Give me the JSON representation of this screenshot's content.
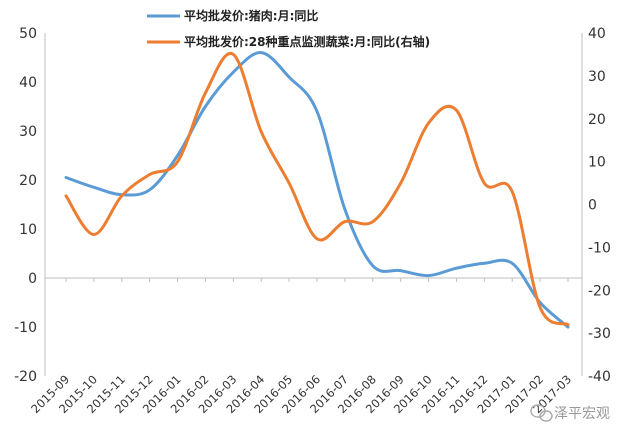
{
  "chart_data": {
    "type": "line",
    "categories": [
      "2015-09",
      "2015-10",
      "2015-11",
      "2015-12",
      "2016-01",
      "2016-02",
      "2016-03",
      "2016-04",
      "2016-05",
      "2016-06",
      "2016-07",
      "2016-08",
      "2016-09",
      "2016-10",
      "2016-11",
      "2016-12",
      "2017-01",
      "2017-02",
      "2017-03"
    ],
    "series": [
      {
        "name": "平均批发价:猪肉:月:同比",
        "axis": "left",
        "color": "#5B9BD5",
        "values": [
          20.5,
          18.5,
          17,
          18,
          25,
          35,
          42,
          46,
          41,
          34,
          14,
          2.5,
          1.5,
          0.5,
          2,
          3,
          3,
          -5,
          -10
        ]
      },
      {
        "name": "平均批发价:28种重点监测蔬菜:月:同比(右轴)",
        "axis": "right",
        "color": "#ED7D31",
        "values": [
          2,
          -7,
          2,
          7,
          10,
          26,
          35,
          17,
          5,
          -8,
          -4,
          -4,
          5,
          19,
          22,
          5,
          3,
          -24,
          -28
        ]
      }
    ],
    "y_left": {
      "min": -20,
      "max": 50,
      "ticks": [
        50,
        40,
        30,
        20,
        10,
        0,
        -10,
        -20
      ]
    },
    "y_right": {
      "min": -40,
      "max": 40,
      "ticks": [
        40,
        30,
        20,
        10,
        0,
        -10,
        -20,
        -30,
        -40
      ]
    },
    "grid": false,
    "legend_position": "top"
  },
  "watermark": "泽平宏观"
}
